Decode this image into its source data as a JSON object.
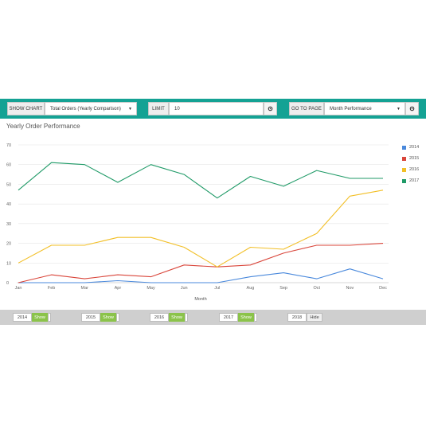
{
  "toolbar": {
    "show_chart_label": "SHOW CHART",
    "chart_select_value": "Total Orders (Yearly Comparison)",
    "limit_label": "LIMIT",
    "limit_value": "10",
    "goto_label": "GO TO PAGE",
    "goto_select_value": "Month Performance"
  },
  "colors": {
    "toolbar_bg": "#14a294",
    "2014": "#4a89dc",
    "2015": "#d9453a",
    "2016": "#f2bf26",
    "2017": "#1f9a67"
  },
  "year_toggles": [
    {
      "year": "2014",
      "state": "Show",
      "on": true
    },
    {
      "year": "2015",
      "state": "Show",
      "on": true
    },
    {
      "year": "2016",
      "state": "Show",
      "on": true
    },
    {
      "year": "2017",
      "state": "Show",
      "on": true
    },
    {
      "year": "2018",
      "state": "Hide",
      "on": false
    }
  ],
  "chart_data": {
    "type": "line",
    "title": "Yearly Order Performance",
    "xlabel": "Month",
    "ylabel": "",
    "ylim": [
      0,
      70
    ],
    "yticks": [
      0,
      10,
      20,
      30,
      40,
      50,
      60,
      70
    ],
    "grid": true,
    "legend": "right",
    "categories": [
      "Jan",
      "Feb",
      "Mar",
      "Apr",
      "May",
      "Jun",
      "Jul",
      "Aug",
      "Sep",
      "Oct",
      "Nov",
      "Dec"
    ],
    "series": [
      {
        "name": "2014",
        "color": "#4a89dc",
        "values": [
          0,
          0,
          0,
          1,
          0,
          0,
          0,
          3,
          5,
          2,
          7,
          2
        ]
      },
      {
        "name": "2015",
        "color": "#d9453a",
        "values": [
          0,
          4,
          2,
          4,
          3,
          9,
          8,
          9,
          15,
          19,
          19,
          20
        ]
      },
      {
        "name": "2016",
        "color": "#f2bf26",
        "values": [
          10,
          19,
          19,
          23,
          23,
          18,
          8,
          18,
          17,
          25,
          44,
          47
        ]
      },
      {
        "name": "2017",
        "color": "#1f9a67",
        "values": [
          47,
          61,
          60,
          51,
          60,
          55,
          43,
          54,
          49,
          57,
          53,
          53
        ]
      }
    ]
  }
}
